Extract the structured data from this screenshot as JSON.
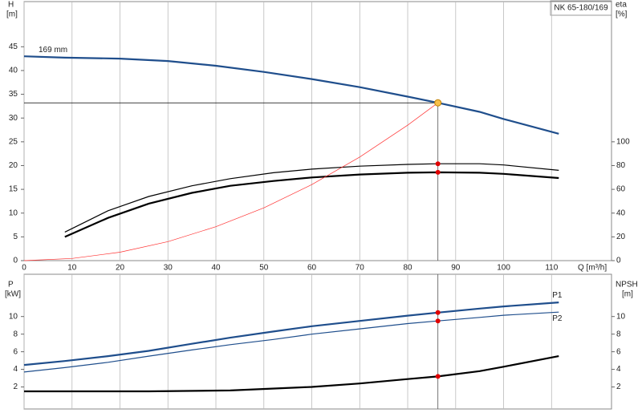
{
  "chart_data": [
    {
      "type": "line",
      "title": "NK 65-180/169",
      "xlabel": "Q [m³/h]",
      "ylabel": "H",
      "yunit": "[m]",
      "y2label": "eta",
      "y2unit": "[%]",
      "xlim": [
        0,
        122.5
      ],
      "xticks": [
        0,
        10,
        20,
        30,
        40,
        50,
        60,
        70,
        80,
        90,
        100,
        110
      ],
      "ylim": [
        0,
        54.5
      ],
      "yticks": [
        0,
        5,
        10,
        15,
        20,
        25,
        30,
        35,
        40,
        45
      ],
      "y2lim": [
        0,
        218
      ],
      "y2ticks": [
        0,
        20,
        40,
        60,
        80,
        100
      ],
      "grid": "x",
      "series": [
        {
          "name": "169 mm",
          "color": "#1f4e8c",
          "weight": "bold",
          "x": [
            0,
            8.5,
            20,
            30,
            40,
            50,
            60,
            70,
            80,
            86.3,
            95,
            100,
            111.5
          ],
          "values": [
            43,
            42.7,
            42.5,
            42,
            41,
            39.7,
            38.2,
            36.5,
            34.5,
            33.2,
            31.3,
            29.8,
            26.7
          ]
        },
        {
          "color": "#000000",
          "weight": "normal",
          "axis": "y2",
          "x": [
            8.5,
            17.5,
            26,
            35,
            43,
            52,
            60,
            70,
            80,
            86.3,
            95,
            100,
            111.5
          ],
          "values": [
            24,
            42,
            54,
            63,
            69,
            74,
            77,
            79.5,
            81,
            81.5,
            81.5,
            80.5,
            76
          ]
        },
        {
          "color": "#000000",
          "weight": "bold",
          "axis": "y2",
          "x": [
            8.5,
            17.5,
            26,
            35,
            43,
            52,
            60,
            70,
            80,
            86.3,
            95,
            100,
            111.5
          ],
          "values": [
            20,
            36,
            48,
            57,
            63,
            67,
            70,
            72.5,
            74,
            74.3,
            74,
            73,
            69.5
          ]
        },
        {
          "color": "#ff3030",
          "weight": "thin",
          "x": [
            0,
            10,
            20,
            30,
            40,
            50,
            60,
            70,
            80,
            86.3
          ],
          "values": [
            0,
            0.45,
            1.78,
            4,
            7.13,
            11.1,
            16,
            21.8,
            28.5,
            33.2
          ]
        }
      ],
      "points": [
        {
          "x": 86.3,
          "value": 33.2,
          "color": "#f7c04a"
        },
        {
          "x": 86.3,
          "value": 81.5,
          "axis": "y2",
          "color": "#e00000"
        },
        {
          "x": 86.3,
          "value": 74.3,
          "axis": "y2",
          "color": "#e00000"
        }
      ]
    },
    {
      "type": "line",
      "ylabel": "P",
      "yunit": "[kW]",
      "y2label": "NPSH",
      "y2unit": "[m]",
      "xlim": [
        0,
        122.5
      ],
      "ylim": [
        -0.5,
        14.8
      ],
      "yticks": [
        2,
        4,
        6,
        8,
        10
      ],
      "y2lim": [
        -0.5,
        14.8
      ],
      "y2ticks": [
        2,
        4,
        6,
        8,
        10
      ],
      "grid": "x",
      "series": [
        {
          "name": "P1",
          "color": "#1f4e8c",
          "weight": "bold",
          "x": [
            0,
            8.5,
            17.5,
            26,
            35,
            43,
            52,
            60,
            70,
            80,
            86.3,
            95,
            100,
            111.5
          ],
          "values": [
            4.5,
            4.95,
            5.5,
            6.1,
            6.9,
            7.6,
            8.3,
            8.9,
            9.5,
            10.1,
            10.45,
            10.9,
            11.15,
            11.6
          ]
        },
        {
          "name": "P2",
          "color": "#1f4e8c",
          "weight": "normal",
          "x": [
            0,
            8.5,
            17.5,
            26,
            35,
            43,
            52,
            60,
            70,
            80,
            86.3,
            95,
            100,
            111.5
          ],
          "values": [
            3.7,
            4.2,
            4.8,
            5.5,
            6.2,
            6.8,
            7.4,
            8,
            8.6,
            9.2,
            9.5,
            9.9,
            10.15,
            10.5
          ]
        },
        {
          "color": "#000000",
          "weight": "bold",
          "axis": "y2",
          "x": [
            0,
            8.5,
            26,
            43,
            60,
            70,
            80,
            86.3,
            95,
            100,
            111.5
          ],
          "values": [
            1.5,
            1.5,
            1.5,
            1.6,
            2,
            2.4,
            2.9,
            3.2,
            3.8,
            4.3,
            5.5
          ]
        }
      ],
      "points": [
        {
          "x": 86.3,
          "value": 10.45,
          "color": "#e00000"
        },
        {
          "x": 86.3,
          "value": 9.5,
          "color": "#e00000"
        },
        {
          "x": 86.3,
          "value": 3.2,
          "axis": "y2",
          "color": "#e00000"
        }
      ]
    }
  ]
}
